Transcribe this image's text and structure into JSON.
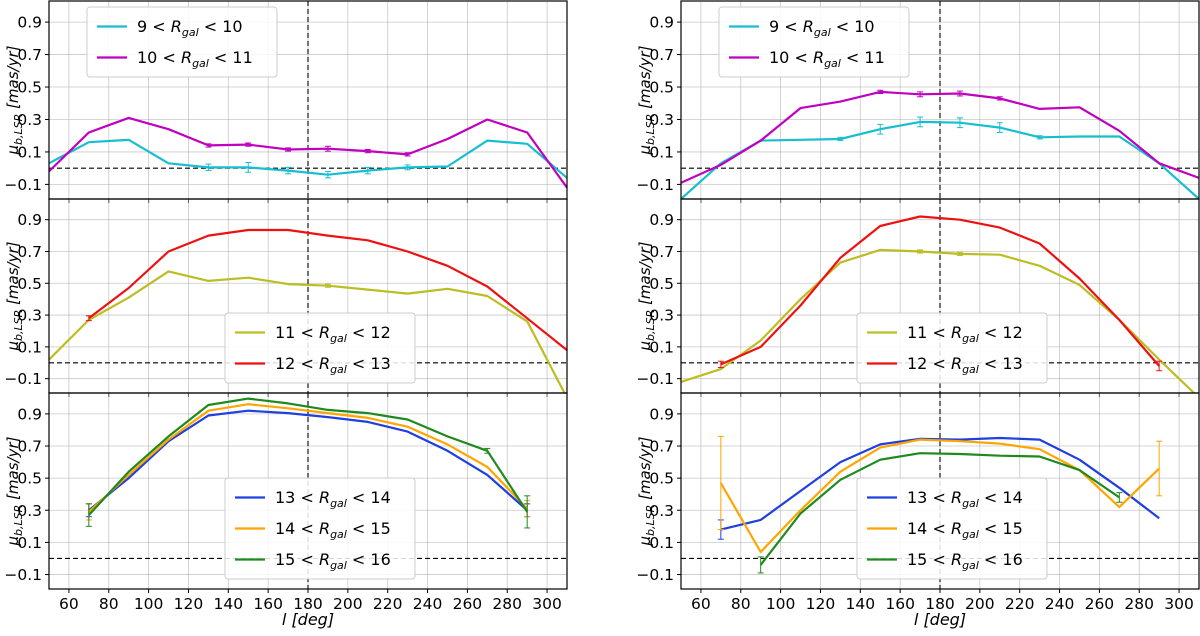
{
  "chart_data": [
    {
      "type": "line",
      "column": "left",
      "row": "top",
      "xlabel": "l [deg]",
      "ylabel": "μ_b,LSR [mas/yr]",
      "xlim": [
        50,
        310
      ],
      "ylim": [
        -0.19,
        1.03
      ],
      "xticks": [
        60,
        80,
        100,
        120,
        140,
        160,
        180,
        200,
        220,
        240,
        260,
        280,
        300
      ],
      "xtick_labels": [],
      "yticks": [
        -0.1,
        0.1,
        0.3,
        0.5,
        0.7,
        0.9
      ],
      "ytick_labels": [
        "−0.1",
        "0.1",
        "0.3",
        "0.5",
        "0.7",
        "0.9"
      ],
      "grid": true,
      "legend_position": "upper-left",
      "vline_x": 180,
      "hline_y": 0,
      "series": [
        {
          "name": "9 < R_gal < 10",
          "label": "9 < Rgal < 10",
          "color": "#17becf",
          "x": [
            50,
            70,
            90,
            110,
            130,
            150,
            170,
            190,
            210,
            230,
            250,
            270,
            290,
            310
          ],
          "y": [
            0.03,
            0.16,
            0.175,
            0.03,
            0.005,
            0.005,
            -0.015,
            -0.04,
            -0.015,
            0.005,
            0.01,
            0.17,
            0.15,
            -0.06
          ],
          "err": [
            0,
            0,
            0,
            0,
            0.02,
            0.03,
            0.02,
            0.02,
            0.02,
            0.015,
            0,
            0,
            0,
            0
          ]
        },
        {
          "name": "10 < R_gal < 11",
          "label": "10 < Rgal < 11",
          "color": "#bf00bf",
          "x": [
            50,
            70,
            90,
            110,
            130,
            150,
            170,
            190,
            210,
            230,
            250,
            270,
            290,
            310
          ],
          "y": [
            -0.02,
            0.22,
            0.31,
            0.24,
            0.14,
            0.145,
            0.115,
            0.12,
            0.105,
            0.085,
            0.18,
            0.3,
            0.22,
            -0.12
          ],
          "err": [
            0,
            0,
            0,
            0,
            0.01,
            0.01,
            0.01,
            0.015,
            0.01,
            0.01,
            0,
            0,
            0,
            0
          ]
        }
      ]
    },
    {
      "type": "line",
      "column": "left",
      "row": "middle",
      "xlabel": "l [deg]",
      "ylabel": "μ_b,LSR [mas/yr]",
      "xlim": [
        50,
        310
      ],
      "ylim": [
        -0.19,
        1.03
      ],
      "xticks": [
        60,
        80,
        100,
        120,
        140,
        160,
        180,
        200,
        220,
        240,
        260,
        280,
        300
      ],
      "xtick_labels": [],
      "yticks": [
        -0.1,
        0.1,
        0.3,
        0.5,
        0.7,
        0.9
      ],
      "ytick_labels": [
        "−0.1",
        "0.1",
        "0.3",
        "0.5",
        "0.7",
        "0.9"
      ],
      "grid": true,
      "legend_position": "lower-center",
      "vline_x": 180,
      "hline_y": 0,
      "series": [
        {
          "name": "11 < R_gal < 12",
          "label": "11 < Rgal < 12",
          "color": "#bcbd22",
          "x": [
            50,
            70,
            90,
            110,
            130,
            150,
            170,
            190,
            210,
            230,
            250,
            270,
            290,
            310
          ],
          "y": [
            0.02,
            0.27,
            0.41,
            0.575,
            0.515,
            0.535,
            0.495,
            0.485,
            0.46,
            0.435,
            0.465,
            0.42,
            0.26,
            -0.22
          ],
          "err": [
            0,
            0,
            0,
            0,
            0,
            0,
            0,
            0.01,
            0,
            0,
            0,
            0,
            0,
            0
          ]
        },
        {
          "name": "12 < R_gal < 13",
          "label": "12 < Rgal < 13",
          "color": "#ee1111",
          "x": [
            70,
            90,
            110,
            130,
            150,
            170,
            190,
            210,
            230,
            250,
            270,
            290,
            310
          ],
          "y": [
            0.28,
            0.47,
            0.7,
            0.8,
            0.835,
            0.835,
            0.8,
            0.77,
            0.7,
            0.61,
            0.48,
            0.28,
            0.08
          ],
          "err": [
            0.015,
            0,
            0,
            0,
            0,
            0,
            0,
            0,
            0,
            0,
            0,
            0,
            0
          ]
        }
      ]
    },
    {
      "type": "line",
      "column": "left",
      "row": "bottom",
      "xlabel": "l [deg]",
      "ylabel": "μ_b,LSR [mas/yr]",
      "xlim": [
        50,
        310
      ],
      "ylim": [
        -0.19,
        1.03
      ],
      "xticks": [
        60,
        80,
        100,
        120,
        140,
        160,
        180,
        200,
        220,
        240,
        260,
        280,
        300
      ],
      "xtick_labels": [
        "60",
        "80",
        "100",
        "120",
        "140",
        "160",
        "180",
        "200",
        "220",
        "240",
        "260",
        "280",
        "300"
      ],
      "yticks": [
        -0.1,
        0.1,
        0.3,
        0.5,
        0.7,
        0.9
      ],
      "ytick_labels": [
        "−0.1",
        "0.1",
        "0.3",
        "0.5",
        "0.7",
        "0.9"
      ],
      "grid": true,
      "legend_position": "lower-center",
      "vline_x": 180,
      "hline_y": 0,
      "series": [
        {
          "name": "13 < R_gal < 14",
          "label": "13 < Rgal < 14",
          "color": "#1f3fdf",
          "x": [
            70,
            90,
            110,
            130,
            150,
            170,
            190,
            210,
            230,
            250,
            270,
            290
          ],
          "y": [
            0.3,
            0.5,
            0.73,
            0.89,
            0.92,
            0.905,
            0.88,
            0.85,
            0.79,
            0.67,
            0.52,
            0.3
          ],
          "err": [
            0.04,
            0,
            0,
            0,
            0,
            0,
            0,
            0,
            0,
            0,
            0,
            0.04
          ]
        },
        {
          "name": "14 < R_gal < 15",
          "label": "14 < Rgal < 15",
          "color": "#ffa500",
          "x": [
            70,
            90,
            110,
            130,
            150,
            170,
            190,
            210,
            230,
            250,
            270,
            290
          ],
          "y": [
            0.29,
            0.52,
            0.74,
            0.92,
            0.96,
            0.935,
            0.905,
            0.875,
            0.82,
            0.71,
            0.57,
            0.31
          ],
          "err": [
            0.05,
            0,
            0,
            0,
            0,
            0,
            0,
            0,
            0,
            0,
            0,
            0.05
          ]
        },
        {
          "name": "15 < R_gal < 16",
          "label": "15 < Rgal < 16",
          "color": "#1e8a1e",
          "x": [
            70,
            90,
            110,
            130,
            150,
            170,
            190,
            210,
            230,
            250,
            270,
            290
          ],
          "y": [
            0.27,
            0.54,
            0.76,
            0.955,
            0.995,
            0.965,
            0.925,
            0.905,
            0.865,
            0.76,
            0.67,
            0.29
          ],
          "err": [
            0.07,
            0,
            0,
            0,
            0,
            0,
            0,
            0,
            0,
            0,
            0.015,
            0.1
          ]
        }
      ]
    },
    {
      "type": "line",
      "column": "right",
      "row": "top",
      "xlabel": "l [deg]",
      "ylabel": "μ_b,LSR [mas/yr]",
      "xlim": [
        50,
        310
      ],
      "ylim": [
        -0.19,
        1.03
      ],
      "xticks": [
        60,
        80,
        100,
        120,
        140,
        160,
        180,
        200,
        220,
        240,
        260,
        280,
        300
      ],
      "xtick_labels": [],
      "yticks": [
        -0.1,
        0.1,
        0.3,
        0.5,
        0.7,
        0.9
      ],
      "ytick_labels": [
        "−0.1",
        "0.1",
        "0.3",
        "0.5",
        "0.7",
        "0.9"
      ],
      "grid": true,
      "legend_position": "upper-left",
      "vline_x": 180,
      "hline_y": 0,
      "series": [
        {
          "name": "9 < R_gal < 10",
          "label": "9 < Rgal < 10",
          "color": "#17becf",
          "x": [
            50,
            70,
            90,
            110,
            130,
            150,
            170,
            190,
            210,
            230,
            250,
            270,
            290,
            310
          ],
          "y": [
            -0.19,
            0.03,
            0.17,
            0.175,
            0.18,
            0.24,
            0.285,
            0.28,
            0.25,
            0.19,
            0.195,
            0.195,
            0.03,
            -0.19
          ],
          "err": [
            0,
            0,
            0,
            0,
            0.01,
            0.03,
            0.03,
            0.03,
            0.03,
            0.01,
            0,
            0,
            0,
            0
          ]
        },
        {
          "name": "10 < R_gal < 11",
          "label": "10 < Rgal < 11",
          "color": "#bf00bf",
          "x": [
            50,
            70,
            90,
            110,
            130,
            150,
            170,
            190,
            210,
            230,
            250,
            270,
            290,
            310
          ],
          "y": [
            -0.09,
            0.02,
            0.17,
            0.37,
            0.41,
            0.47,
            0.455,
            0.46,
            0.43,
            0.365,
            0.375,
            0.23,
            0.03,
            -0.06
          ],
          "err": [
            0,
            0,
            0,
            0,
            0,
            0.01,
            0.015,
            0.015,
            0.01,
            0,
            0,
            0,
            0,
            0
          ]
        }
      ]
    },
    {
      "type": "line",
      "column": "right",
      "row": "middle",
      "xlabel": "l [deg]",
      "ylabel": "μ_b,LSR [mas/yr]",
      "xlim": [
        50,
        310
      ],
      "ylim": [
        -0.19,
        1.03
      ],
      "xticks": [
        60,
        80,
        100,
        120,
        140,
        160,
        180,
        200,
        220,
        240,
        260,
        280,
        300
      ],
      "xtick_labels": [],
      "yticks": [
        -0.1,
        0.1,
        0.3,
        0.5,
        0.7,
        0.9
      ],
      "ytick_labels": [
        "−0.1",
        "0.1",
        "0.3",
        "0.5",
        "0.7",
        "0.9"
      ],
      "grid": true,
      "legend_position": "lower-center",
      "vline_x": 180,
      "hline_y": 0,
      "series": [
        {
          "name": "11 < R_gal < 12",
          "label": "11 < Rgal < 12",
          "color": "#bcbd22",
          "x": [
            50,
            70,
            90,
            110,
            130,
            150,
            170,
            190,
            210,
            230,
            250,
            270,
            290,
            310
          ],
          "y": [
            -0.12,
            -0.04,
            0.14,
            0.4,
            0.63,
            0.71,
            0.7,
            0.685,
            0.68,
            0.61,
            0.49,
            0.27,
            0.02,
            -0.22
          ],
          "err": [
            0,
            0,
            0,
            0,
            0,
            0,
            0.01,
            0.01,
            0,
            0,
            0,
            0,
            0,
            0
          ]
        },
        {
          "name": "12 < R_gal < 13",
          "label": "12 < Rgal < 13",
          "color": "#ee1111",
          "x": [
            70,
            90,
            110,
            130,
            150,
            170,
            190,
            210,
            230,
            250,
            270,
            290
          ],
          "y": [
            -0.01,
            0.1,
            0.36,
            0.66,
            0.86,
            0.92,
            0.9,
            0.85,
            0.75,
            0.53,
            0.27,
            -0.02
          ],
          "err": [
            0.02,
            0,
            0,
            0,
            0,
            0,
            0,
            0,
            0,
            0,
            0,
            0.03
          ]
        }
      ]
    },
    {
      "type": "line",
      "column": "right",
      "row": "bottom",
      "xlabel": "l [deg]",
      "ylabel": "μ_b,LSR [mas/yr]",
      "xlim": [
        50,
        310
      ],
      "ylim": [
        -0.19,
        1.03
      ],
      "xticks": [
        60,
        80,
        100,
        120,
        140,
        160,
        180,
        200,
        220,
        240,
        260,
        280,
        300
      ],
      "xtick_labels": [
        "60",
        "80",
        "100",
        "120",
        "140",
        "160",
        "180",
        "200",
        "220",
        "240",
        "260",
        "280",
        "300"
      ],
      "yticks": [
        -0.1,
        0.1,
        0.3,
        0.5,
        0.7,
        0.9
      ],
      "ytick_labels": [
        "−0.1",
        "0.1",
        "0.3",
        "0.5",
        "0.7",
        "0.9"
      ],
      "grid": true,
      "legend_position": "lower-center",
      "vline_x": 180,
      "hline_y": 0,
      "series": [
        {
          "name": "13 < R_gal < 14",
          "label": "13 < Rgal < 14",
          "color": "#1f3fdf",
          "x": [
            70,
            90,
            110,
            130,
            150,
            170,
            190,
            210,
            230,
            250,
            270,
            290
          ],
          "y": [
            0.18,
            0.24,
            0.42,
            0.6,
            0.71,
            0.745,
            0.74,
            0.75,
            0.74,
            0.615,
            0.44,
            0.25
          ],
          "err": [
            0.06,
            0,
            0,
            0,
            0,
            0,
            0,
            0,
            0,
            0,
            0,
            0
          ]
        },
        {
          "name": "14 < R_gal < 15",
          "label": "14 < Rgal < 15",
          "color": "#ffa500",
          "x": [
            70,
            90,
            110,
            130,
            150,
            170,
            190,
            210,
            230,
            250,
            270,
            290
          ],
          "y": [
            0.47,
            0.04,
            0.3,
            0.54,
            0.69,
            0.74,
            0.73,
            0.715,
            0.68,
            0.55,
            0.32,
            0.56
          ],
          "err": [
            0.29,
            0,
            0,
            0,
            0,
            0,
            0,
            0,
            0,
            0,
            0,
            0.17
          ]
        },
        {
          "name": "15 < R_gal < 16",
          "label": "15 < Rgal < 16",
          "color": "#1e8a1e",
          "x": [
            90,
            110,
            130,
            150,
            170,
            190,
            210,
            230,
            250,
            270
          ],
          "y": [
            -0.04,
            0.28,
            0.49,
            0.615,
            0.655,
            0.65,
            0.64,
            0.635,
            0.55,
            0.38
          ],
          "err": [
            0.05,
            0,
            0,
            0,
            0,
            0,
            0,
            0,
            0,
            0.03
          ]
        }
      ]
    }
  ]
}
